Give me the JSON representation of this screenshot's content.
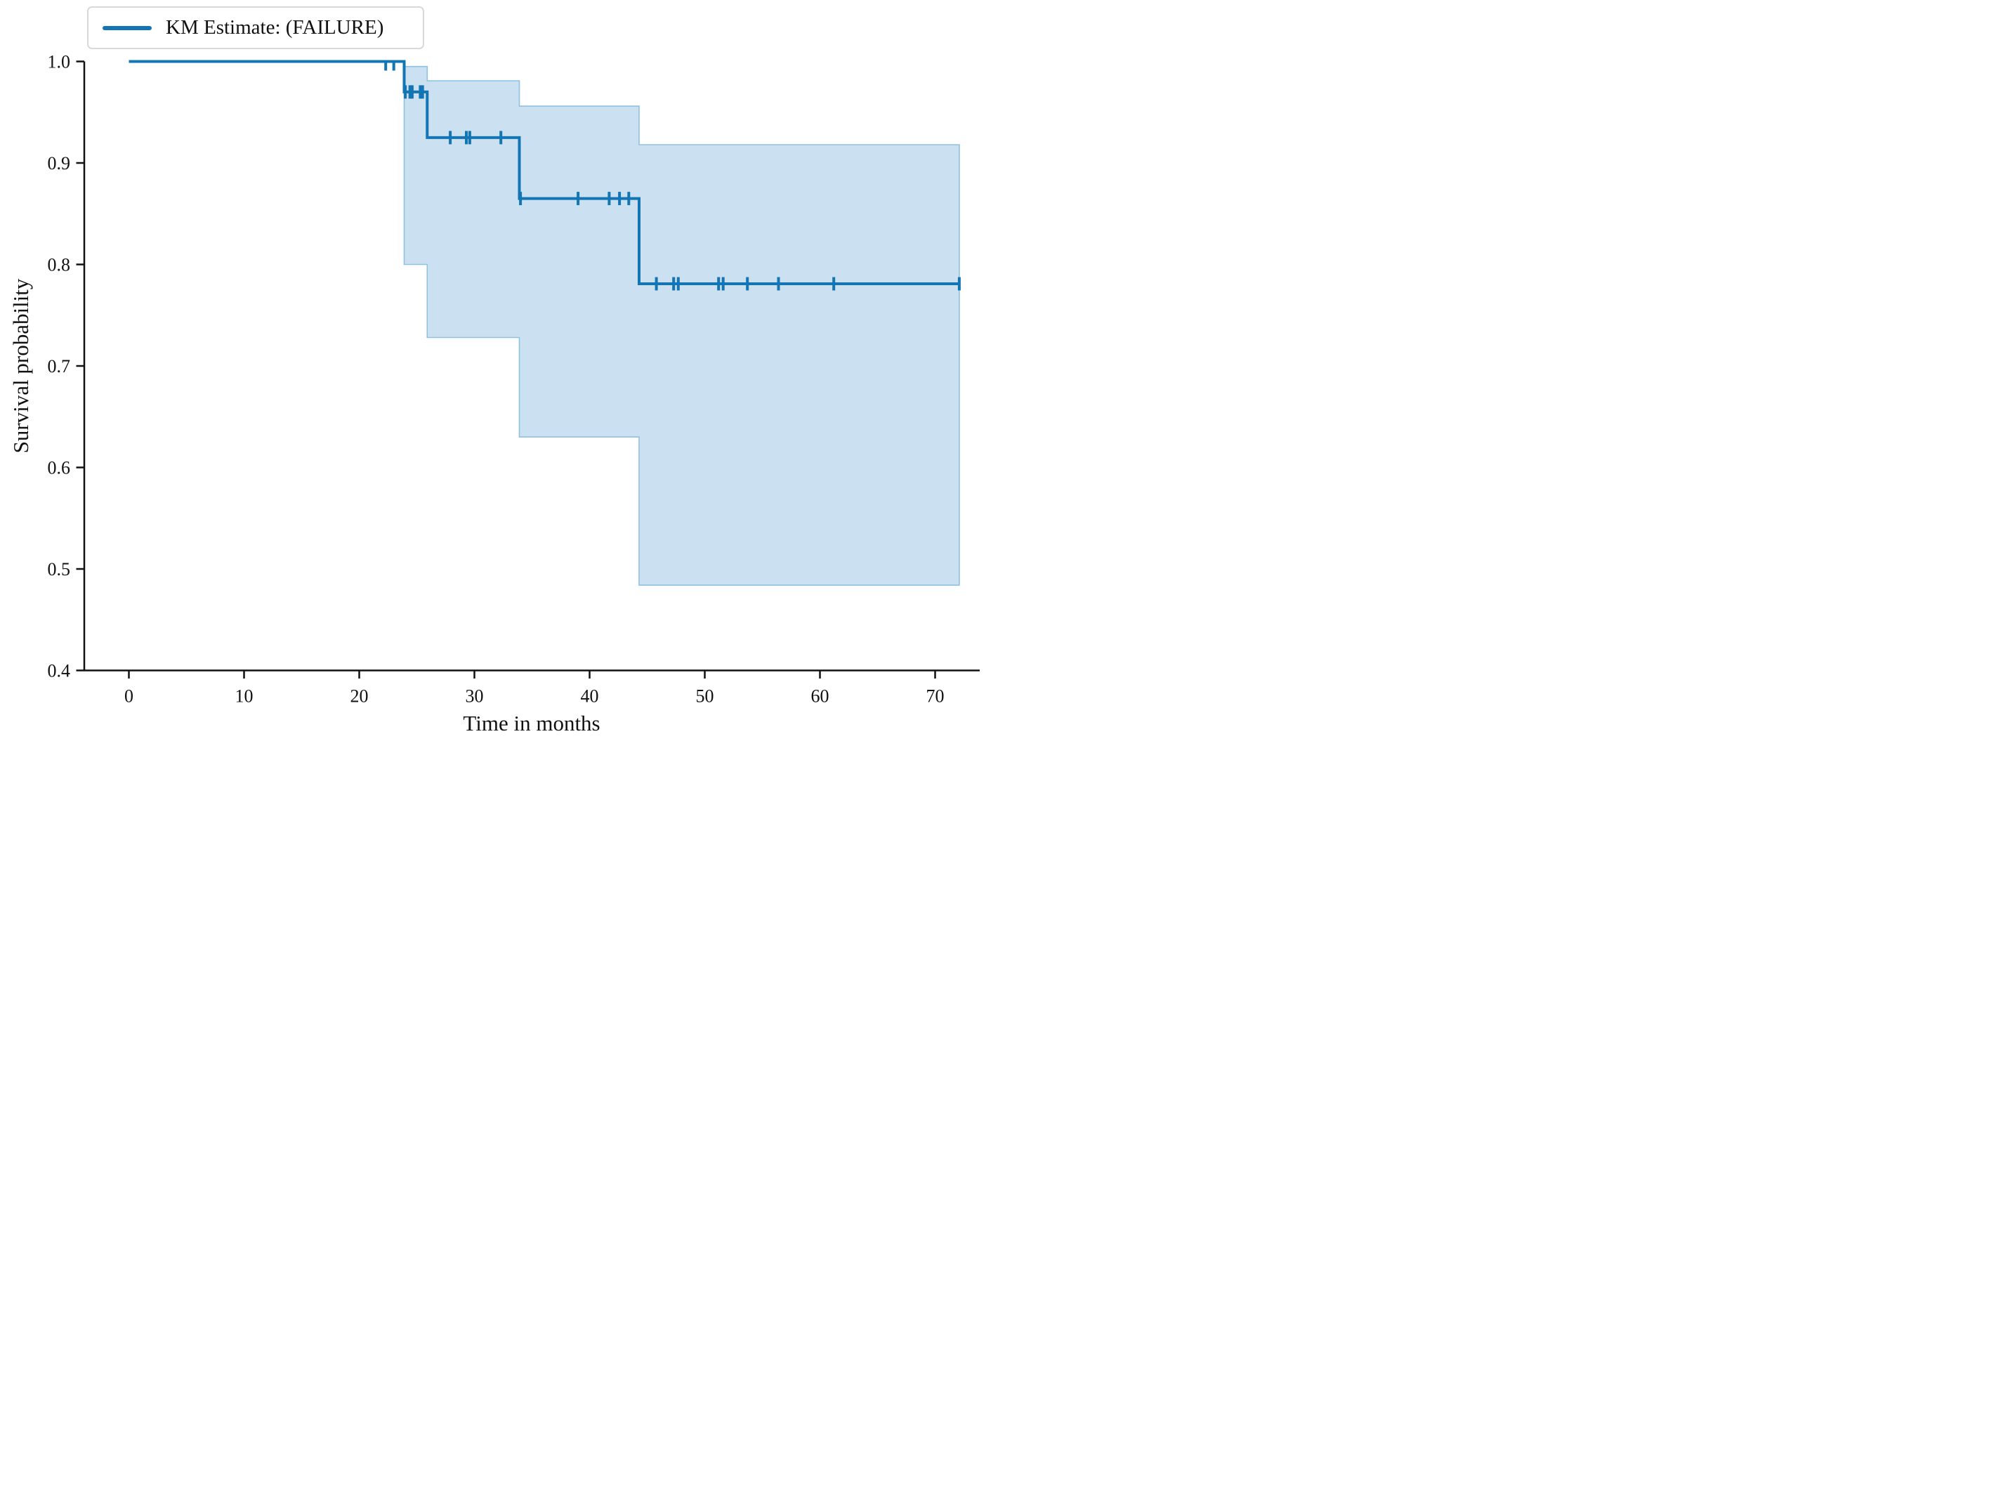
{
  "figure": {
    "background_color": "#ffffff",
    "text_color": "#111111",
    "spine_color": "#111111"
  },
  "chart_data": {
    "type": "line",
    "subtype": "kaplan-meier-step",
    "title": "",
    "xlabel": "Time in months",
    "ylabel": "Survival probability",
    "xlim": [
      -3.9,
      74
    ],
    "ylim": [
      0.4,
      1.0
    ],
    "x_ticks": [
      0,
      10,
      20,
      30,
      40,
      50,
      60,
      70
    ],
    "y_ticks": [
      1.0,
      0.9,
      0.8,
      0.7,
      0.6,
      0.5,
      0.4
    ],
    "grid": false,
    "legend": {
      "label": "KM Estimate: (FAILURE)",
      "position": "upper left"
    },
    "series": {
      "name": "KM Estimate: (FAILURE)",
      "color": "#1375b4",
      "start_time": 0,
      "end_time": 72.1,
      "event_times": [
        23.9,
        25.9,
        33.9,
        44.3
      ],
      "survival_levels": [
        1.0,
        0.97,
        0.925,
        0.865,
        0.781
      ],
      "censor_times_by_level": [
        [
          22.3,
          23.0
        ],
        [
          24.0,
          24.4,
          24.6,
          25.3,
          25.5
        ],
        [
          27.9,
          29.3,
          29.6,
          32.3
        ],
        [
          34.0,
          39.0,
          41.7,
          42.6,
          43.4
        ],
        [
          45.8,
          47.3,
          47.7,
          51.2,
          51.6,
          53.7,
          56.4,
          61.2,
          72.1
        ]
      ],
      "confidence_band": {
        "fill_color": "#cbe1f1",
        "edge_color": "#8fc1e1",
        "segments": [
          {
            "t": [
              23.9,
              25.9
            ],
            "lower": 0.8,
            "upper": 0.995
          },
          {
            "t": [
              25.9,
              33.9
            ],
            "lower": 0.728,
            "upper": 0.981
          },
          {
            "t": [
              33.9,
              44.3
            ],
            "lower": 0.63,
            "upper": 0.956
          },
          {
            "t": [
              44.3,
              72.1
            ],
            "lower": 0.484,
            "upper": 0.918
          }
        ]
      }
    }
  }
}
